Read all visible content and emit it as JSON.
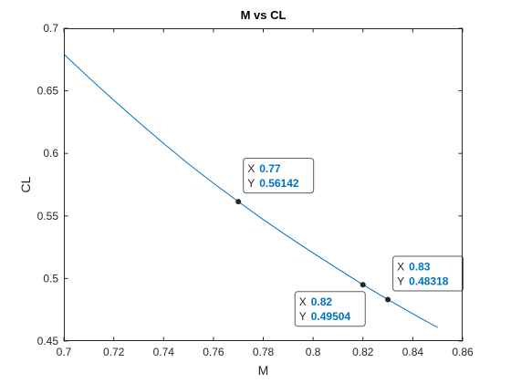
{
  "chart_data": {
    "type": "line",
    "title": "M vs CL",
    "xlabel": "M",
    "ylabel": "CL",
    "xlim": [
      0.7,
      0.86
    ],
    "ylim": [
      0.45,
      0.7
    ],
    "xticks": [
      "0.7",
      "0.72",
      "0.74",
      "0.76",
      "0.78",
      "0.8",
      "0.82",
      "0.84",
      "0.86"
    ],
    "yticks": [
      "0.45",
      "0.5",
      "0.55",
      "0.6",
      "0.65",
      "0.7"
    ],
    "grid": false,
    "series": [
      {
        "color": "#0072BD",
        "x": [
          0.7,
          0.71,
          0.72,
          0.73,
          0.74,
          0.75,
          0.76,
          0.77,
          0.78,
          0.79,
          0.8,
          0.81,
          0.82,
          0.83,
          0.84,
          0.85
        ],
        "y": [
          0.6793,
          0.6606,
          0.6425,
          0.625,
          0.608,
          0.5916,
          0.5762,
          0.56142,
          0.5471,
          0.5335,
          0.5204,
          0.5076,
          0.49504,
          0.48318,
          0.4718,
          0.4608
        ]
      }
    ],
    "datatips": [
      {
        "x_label": "X",
        "x_value": "0.77",
        "y_label": "Y",
        "y_value": "0.56142",
        "x": 0.77,
        "y": 0.56142,
        "side": "right"
      },
      {
        "x_label": "X",
        "x_value": "0.82",
        "y_label": "Y",
        "y_value": "0.49504",
        "x": 0.82,
        "y": 0.49504,
        "side": "below-left"
      },
      {
        "x_label": "X",
        "x_value": "0.83",
        "y_label": "Y",
        "y_value": "0.48318",
        "x": 0.83,
        "y": 0.48318,
        "side": "right"
      }
    ],
    "datatip_value_color": "#0072BD"
  }
}
